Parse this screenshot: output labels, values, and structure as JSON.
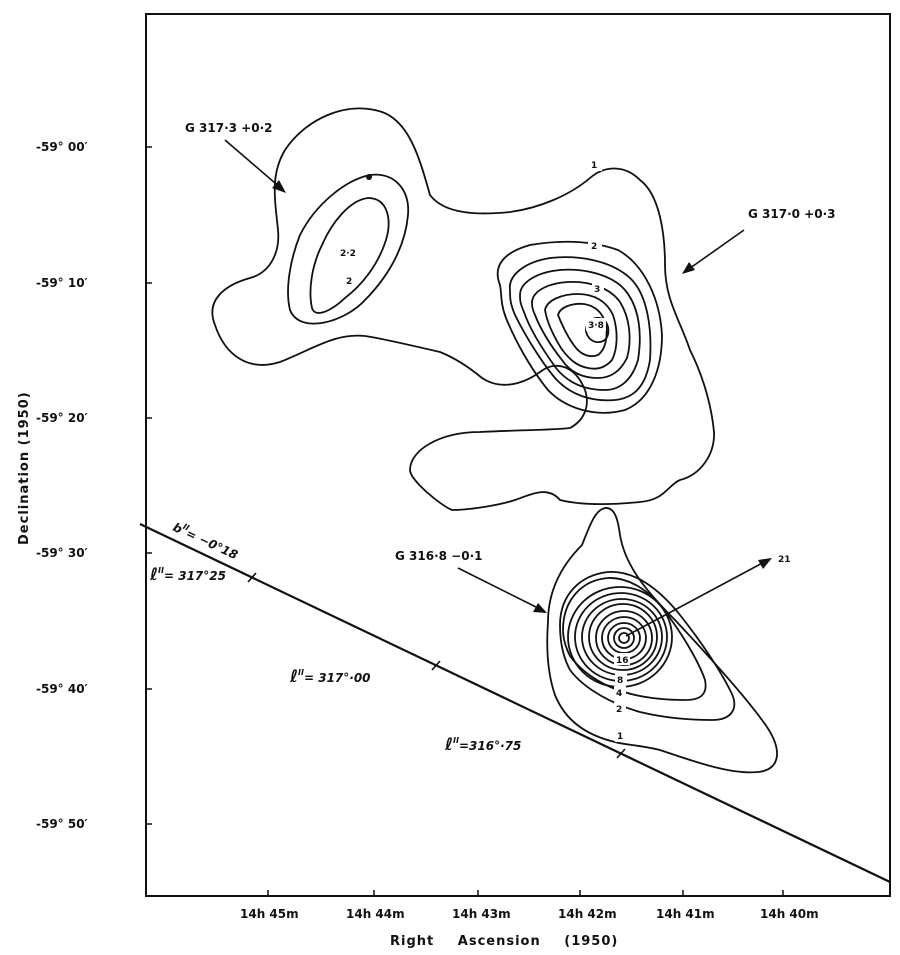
{
  "chart_data": {
    "type": "contour",
    "xlabel": "Right Ascension (1950)",
    "ylabel": "Declination (1950)",
    "x_ticks": [
      "14h 45m",
      "14h 44m",
      "14h 43m",
      "14h 42m",
      "14h 41m",
      "14h 40m"
    ],
    "y_ticks": [
      "-59° 00′",
      "-59° 10′",
      "-59° 20′",
      "-59° 30′",
      "-59° 40′",
      "-59° 50′"
    ],
    "sources": [
      {
        "name": "G 317·3 +0·2",
        "peak": "2·2"
      },
      {
        "name": "G 317·0 +0·3",
        "peak": "3·8"
      },
      {
        "name": "G 316·8 −0·1",
        "peak": "21"
      }
    ],
    "contour_labels": [
      "1",
      "2",
      "2·2",
      "2",
      "3",
      "3·8",
      "1",
      "2",
      "4",
      "8",
      "16",
      "21"
    ],
    "galactic_annotations": [
      {
        "text": "b",
        "sup": "II",
        "value": "= −0°18"
      },
      {
        "text": "ℓ",
        "sup": "II",
        "value": "= 317°25"
      },
      {
        "text": "ℓ",
        "sup": "II",
        "value": "= 317°·00"
      },
      {
        "text": "ℓ",
        "sup": "II",
        "value": "=316°·75"
      }
    ]
  }
}
